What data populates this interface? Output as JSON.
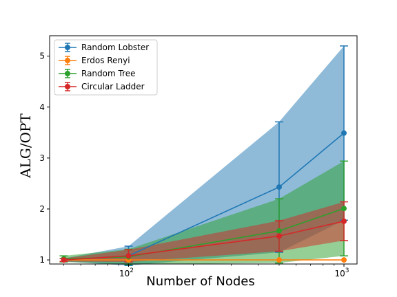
{
  "chart_data": {
    "type": "line",
    "xscale": "log",
    "x": [
      50,
      100,
      500,
      1000
    ],
    "xlim": [
      43,
      1150
    ],
    "ylim": [
      0.92,
      5.4
    ],
    "xlabel": "Number of Nodes",
    "ylabel": "ALG/OPT",
    "y_ticks": [
      1,
      2,
      3,
      4,
      5
    ],
    "x_tick_labels": [
      {
        "value": 100,
        "base": "10",
        "exp": "2"
      },
      {
        "value": 1000,
        "base": "10",
        "exp": "3"
      }
    ],
    "grid": false,
    "legend_position": "upper-left",
    "series": [
      {
        "name": "Random Lobster",
        "color": "#1f77b4",
        "y": [
          1.0,
          1.08,
          2.43,
          3.49
        ],
        "err": [
          0.03,
          0.19,
          1.28,
          1.71
        ]
      },
      {
        "name": "Erdos Renyi",
        "color": "#ff7f0e",
        "y": [
          1.0,
          1.0,
          1.0,
          1.0
        ],
        "err": [
          0.0,
          0.0,
          0.0,
          0.0
        ]
      },
      {
        "name": "Random Tree",
        "color": "#2ca02c",
        "y": [
          1.02,
          1.06,
          1.57,
          2.01
        ],
        "err": [
          0.06,
          0.15,
          0.63,
          0.93
        ]
      },
      {
        "name": "Circular Ladder",
        "color": "#d62728",
        "y": [
          1.0,
          1.08,
          1.47,
          1.76
        ],
        "err": [
          0.03,
          0.12,
          0.3,
          0.38
        ]
      }
    ]
  }
}
